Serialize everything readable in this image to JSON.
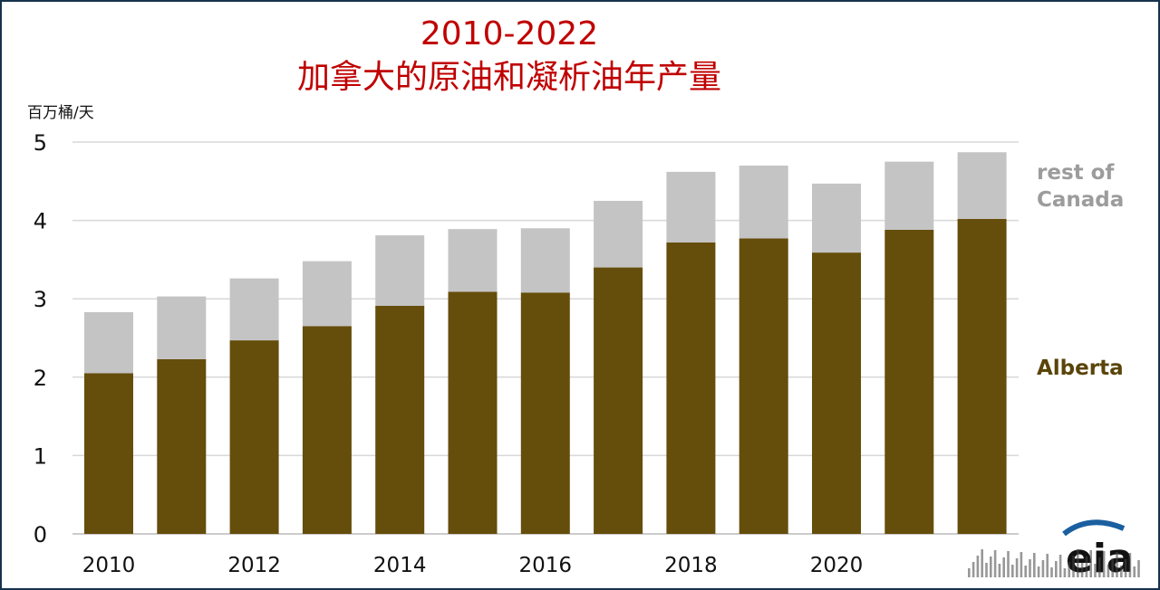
{
  "title_line1": "2010-2022",
  "title_line2": "加拿大的原油和凝析油年产量",
  "unit_label": "百万桶/天",
  "logo_text": "eia",
  "colors": {
    "title": "#c00000",
    "alberta": "#654d0b",
    "rest_of_canada": "#c4c4c4",
    "legend_rest": "#9c9c9c",
    "legend_alberta": "#5a4408",
    "grid": "#d8d8d8",
    "logo": "#1a5fa0"
  },
  "chart_data": {
    "type": "bar",
    "stacked": true,
    "title": "2010-2022 加拿大的原油和凝析油年产量",
    "ylabel": "百万桶/天",
    "ylim": [
      0,
      5
    ],
    "yticks": [
      0,
      1,
      2,
      3,
      4,
      5
    ],
    "x_tick_labels": [
      "2010",
      "2012",
      "2014",
      "2016",
      "2018",
      "2020"
    ],
    "categories": [
      "2010",
      "2011",
      "2012",
      "2013",
      "2014",
      "2015",
      "2016",
      "2017",
      "2018",
      "2019",
      "2020",
      "2021",
      "2022"
    ],
    "series": [
      {
        "name": "Alberta",
        "values": [
          2.05,
          2.23,
          2.47,
          2.65,
          2.91,
          3.09,
          3.08,
          3.4,
          3.72,
          3.77,
          3.59,
          3.88,
          4.02
        ]
      },
      {
        "name": "rest of Canada",
        "values": [
          0.78,
          0.8,
          0.79,
          0.83,
          0.9,
          0.8,
          0.82,
          0.85,
          0.9,
          0.93,
          0.88,
          0.87,
          0.85
        ]
      }
    ],
    "grid": true,
    "legend_placement": "right, inline labels",
    "legend": {
      "rest_line1": "rest of",
      "rest_line2": "Canada",
      "alberta": "Alberta"
    }
  }
}
